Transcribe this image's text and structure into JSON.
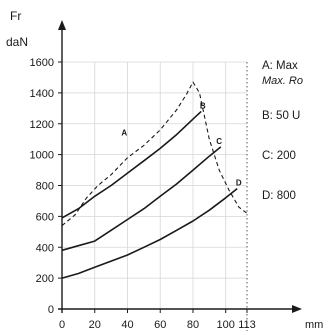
{
  "chart_data": {
    "type": "line",
    "ylabel_top": "Fr",
    "ylabel_unit": "daN",
    "xunit": "mm",
    "xlim": [
      0,
      113
    ],
    "ylim": [
      0,
      1600
    ],
    "x_ticks": [
      "0",
      "20",
      "40",
      "60",
      "80",
      "100",
      "113"
    ],
    "y_ticks": [
      "0",
      "200",
      "400",
      "600",
      "800",
      "1000",
      "1200",
      "1400",
      "1600"
    ],
    "grid": true,
    "legend_position": "right",
    "series": [
      {
        "name": "A",
        "style": "dashed",
        "points": [
          [
            0,
            540
          ],
          [
            8,
            610
          ],
          [
            15,
            720
          ],
          [
            22,
            800
          ],
          [
            30,
            870
          ],
          [
            40,
            980
          ],
          [
            50,
            1060
          ],
          [
            60,
            1160
          ],
          [
            70,
            1290
          ],
          [
            76,
            1390
          ],
          [
            80,
            1470
          ],
          [
            84,
            1400
          ],
          [
            90,
            1100
          ],
          [
            96,
            900
          ],
          [
            102,
            770
          ],
          [
            108,
            660
          ],
          [
            113,
            620
          ]
        ]
      },
      {
        "name": "B",
        "style": "solid",
        "points": [
          [
            0,
            590
          ],
          [
            10,
            650
          ],
          [
            20,
            730
          ],
          [
            30,
            800
          ],
          [
            40,
            880
          ],
          [
            50,
            960
          ],
          [
            60,
            1040
          ],
          [
            70,
            1130
          ],
          [
            80,
            1230
          ],
          [
            85,
            1280
          ]
        ]
      },
      {
        "name": "C",
        "style": "solid",
        "points": [
          [
            0,
            380
          ],
          [
            10,
            410
          ],
          [
            20,
            440
          ],
          [
            30,
            510
          ],
          [
            40,
            580
          ],
          [
            50,
            650
          ],
          [
            60,
            730
          ],
          [
            70,
            810
          ],
          [
            80,
            900
          ],
          [
            90,
            990
          ],
          [
            97,
            1050
          ]
        ]
      },
      {
        "name": "D",
        "style": "solid",
        "points": [
          [
            0,
            200
          ],
          [
            10,
            230
          ],
          [
            20,
            270
          ],
          [
            30,
            310
          ],
          [
            40,
            350
          ],
          [
            50,
            400
          ],
          [
            60,
            450
          ],
          [
            70,
            510
          ],
          [
            80,
            570
          ],
          [
            90,
            640
          ],
          [
            100,
            720
          ],
          [
            107,
            780
          ]
        ]
      }
    ],
    "curve_labels": [
      {
        "text": "A",
        "x": 38,
        "y": 1125
      },
      {
        "text": "B",
        "x": 86,
        "y": 1300
      },
      {
        "text": "C",
        "x": 96,
        "y": 1070
      },
      {
        "text": "D",
        "x": 108,
        "y": 800
      }
    ]
  },
  "legend": [
    {
      "key": "A",
      "text": "A:  Max",
      "sub": "Max. Ro"
    },
    {
      "key": "B",
      "text": "B:  50 U",
      "sub": ""
    },
    {
      "key": "C",
      "text": "C:  200",
      "sub": ""
    },
    {
      "key": "D",
      "text": "D:  800",
      "sub": ""
    }
  ],
  "colors": {
    "line": "#1a1a1a",
    "grid": "#d6d6d6"
  }
}
